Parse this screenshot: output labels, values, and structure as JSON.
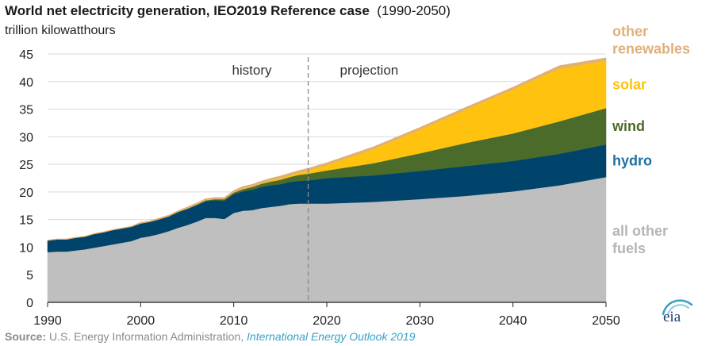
{
  "title": "World net electricity generation, IEO2019 Reference case",
  "title_range": "(1990-2050)",
  "ylabel": "trillion kilowatthours",
  "source": {
    "label": "Source:",
    "org": "U.S. Energy Information Administration,",
    "publication": "International Energy Outlook 2019"
  },
  "logo_text": "eia",
  "chart_data": {
    "type": "area",
    "stacked": true,
    "xlim": [
      1990,
      2050
    ],
    "ylim": [
      0,
      45
    ],
    "yticks": [
      0,
      5,
      10,
      15,
      20,
      25,
      30,
      35,
      40,
      45
    ],
    "xticks": [
      1990,
      2000,
      2010,
      2020,
      2030,
      2040,
      2050
    ],
    "divider_year": 2018,
    "period_labels": [
      "history",
      "projection"
    ],
    "x": [
      1990,
      1991,
      1992,
      1993,
      1994,
      1995,
      1996,
      1997,
      1998,
      1999,
      2000,
      2001,
      2002,
      2003,
      2004,
      2005,
      2006,
      2007,
      2008,
      2009,
      2010,
      2011,
      2012,
      2013,
      2014,
      2015,
      2016,
      2017,
      2018,
      2020,
      2025,
      2030,
      2035,
      2040,
      2045,
      2050
    ],
    "series": [
      {
        "name": "all other fuels",
        "color": "#bfbfbf",
        "values": [
          9.1,
          9.2,
          9.2,
          9.4,
          9.6,
          9.9,
          10.2,
          10.5,
          10.8,
          11.1,
          11.7,
          12.0,
          12.4,
          12.9,
          13.5,
          14.0,
          14.6,
          15.3,
          15.3,
          15.1,
          16.2,
          16.6,
          16.7,
          17.1,
          17.3,
          17.5,
          17.8,
          17.9,
          17.9,
          17.9,
          18.2,
          18.7,
          19.3,
          20.1,
          21.2,
          22.7
        ]
      },
      {
        "name": "hydro",
        "color": "#00446b",
        "values": [
          2.1,
          2.2,
          2.2,
          2.3,
          2.3,
          2.5,
          2.5,
          2.6,
          2.6,
          2.6,
          2.6,
          2.6,
          2.6,
          2.6,
          2.8,
          2.9,
          3.0,
          3.0,
          3.2,
          3.3,
          3.4,
          3.5,
          3.7,
          3.8,
          3.9,
          3.9,
          4.0,
          4.1,
          4.2,
          4.6,
          4.8,
          5.1,
          5.4,
          5.5,
          5.7,
          5.9
        ]
      },
      {
        "name": "wind",
        "color": "#4a6b2a",
        "values": [
          0.0,
          0.0,
          0.0,
          0.0,
          0.0,
          0.0,
          0.0,
          0.0,
          0.0,
          0.0,
          0.0,
          0.0,
          0.1,
          0.1,
          0.1,
          0.1,
          0.1,
          0.2,
          0.2,
          0.3,
          0.3,
          0.4,
          0.5,
          0.6,
          0.7,
          0.8,
          0.9,
          1.1,
          1.2,
          1.4,
          2.2,
          3.2,
          4.2,
          5.0,
          5.9,
          6.6
        ]
      },
      {
        "name": "solar",
        "color": "#ffc20e",
        "values": [
          0.0,
          0.0,
          0.0,
          0.0,
          0.0,
          0.0,
          0.0,
          0.0,
          0.0,
          0.0,
          0.0,
          0.0,
          0.0,
          0.0,
          0.0,
          0.0,
          0.0,
          0.0,
          0.0,
          0.0,
          0.0,
          0.1,
          0.1,
          0.1,
          0.2,
          0.3,
          0.3,
          0.4,
          0.6,
          1.0,
          2.6,
          4.3,
          6.1,
          8.0,
          9.6,
          8.6
        ]
      },
      {
        "name": "other renewables",
        "color": "#e0b078",
        "values": [
          0.1,
          0.1,
          0.1,
          0.1,
          0.1,
          0.1,
          0.1,
          0.1,
          0.1,
          0.1,
          0.2,
          0.2,
          0.2,
          0.2,
          0.2,
          0.3,
          0.3,
          0.3,
          0.3,
          0.3,
          0.4,
          0.4,
          0.4,
          0.4,
          0.4,
          0.4,
          0.4,
          0.4,
          0.4,
          0.4,
          0.4,
          0.4,
          0.4,
          0.4,
          0.5,
          0.5
        ]
      }
    ],
    "labels": [
      {
        "series": "other renewables",
        "lines": [
          "other",
          "renewables"
        ],
        "color": "#e0b078"
      },
      {
        "series": "solar",
        "lines": [
          "solar"
        ],
        "color": "#ffc20e"
      },
      {
        "series": "wind",
        "lines": [
          "wind"
        ],
        "color": "#4a6b2a"
      },
      {
        "series": "hydro",
        "lines": [
          "hydro"
        ],
        "color": "#1f6fa0"
      },
      {
        "series": "all other fuels",
        "lines": [
          "all other",
          "fuels"
        ],
        "color": "#b5b5b5"
      }
    ]
  }
}
